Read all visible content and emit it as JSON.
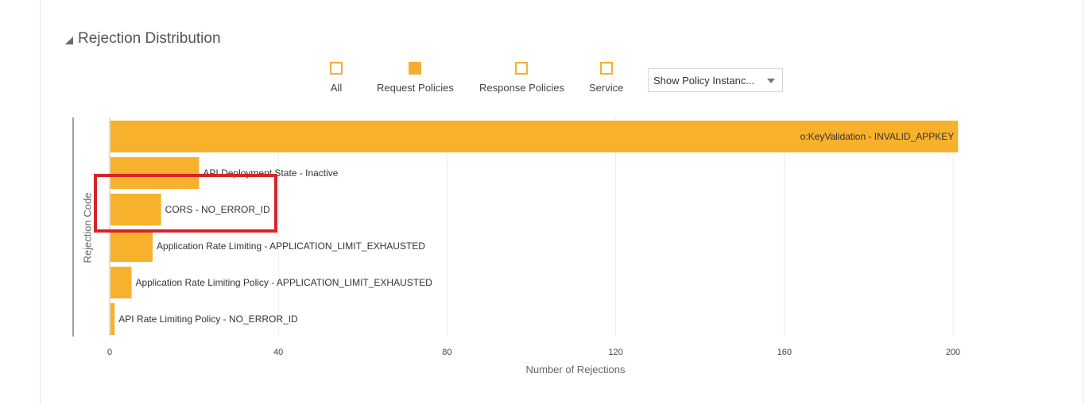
{
  "section": {
    "title": "Rejection Distribution"
  },
  "legend": [
    {
      "label": "All",
      "filled": false
    },
    {
      "label": "Request Policies",
      "filled": true
    },
    {
      "label": "Response Policies",
      "filled": false
    },
    {
      "label": "Service",
      "filled": false
    }
  ],
  "dropdown": {
    "value": "Show Policy Instanc..."
  },
  "colors": {
    "bar": "#f8b12c",
    "legend": "#f6ad36",
    "highlight": "#d8232a"
  },
  "chart_data": {
    "type": "bar",
    "orientation": "horizontal",
    "categories": [
      "o:KeyValidation - INVALID_APPKEY",
      "API Deployment State - Inactive",
      "CORS - NO_ERROR_ID",
      "Application Rate Limiting - APPLICATION_LIMIT_EXHAUSTED",
      "Application Rate Limiting Policy - APPLICATION_LIMIT_EXHAUSTED",
      "API Rate Limiting Policy - NO_ERROR_ID"
    ],
    "values": [
      201,
      21,
      12,
      10,
      5,
      1
    ],
    "xlabel": "Number of Rejections",
    "ylabel": "Rejection Code",
    "xlim": [
      0,
      200
    ],
    "xticks": [
      0,
      40,
      80,
      120,
      160,
      200
    ],
    "grid": true,
    "highlighted_category": "CORS - NO_ERROR_ID"
  }
}
